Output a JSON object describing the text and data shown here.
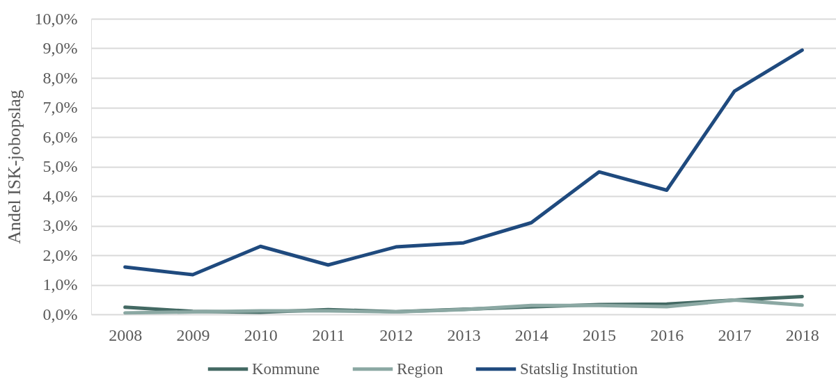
{
  "chart_data": {
    "type": "line",
    "ylabel": "Andel ISK-jobopslag",
    "categories": [
      "2008",
      "2009",
      "2010",
      "2011",
      "2012",
      "2013",
      "2014",
      "2015",
      "2016",
      "2017",
      "2018"
    ],
    "series": [
      {
        "name": "Kommune",
        "color": "#436963",
        "values": [
          0.24,
          0.1,
          0.07,
          0.16,
          0.09,
          0.17,
          0.25,
          0.33,
          0.35,
          0.48,
          0.6
        ]
      },
      {
        "name": "Region",
        "color": "#8ba8a3",
        "values": [
          0.05,
          0.08,
          0.12,
          0.12,
          0.08,
          0.16,
          0.3,
          0.3,
          0.26,
          0.48,
          0.31
        ]
      },
      {
        "name": "Statslig Institution",
        "color": "#1f4a7e",
        "values": [
          1.6,
          1.34,
          2.3,
          1.67,
          2.28,
          2.42,
          3.1,
          4.82,
          4.2,
          7.55,
          8.94
        ]
      }
    ],
    "ylim": [
      0,
      10
    ],
    "yticks": [
      {
        "value": 0,
        "label": "0,0%"
      },
      {
        "value": 1,
        "label": "1,0%"
      },
      {
        "value": 2,
        "label": "2,0%"
      },
      {
        "value": 3,
        "label": "3,0%"
      },
      {
        "value": 4,
        "label": "4,0%"
      },
      {
        "value": 5,
        "label": "5,0%"
      },
      {
        "value": 6,
        "label": "6,0%"
      },
      {
        "value": 7,
        "label": "7,0%"
      },
      {
        "value": 8,
        "label": "8,0%"
      },
      {
        "value": 9,
        "label": "9,0%"
      },
      {
        "value": 10,
        "label": "10,0%"
      }
    ],
    "grid": "y",
    "legend": "bottom",
    "marker": "none",
    "line_style": "solid"
  }
}
